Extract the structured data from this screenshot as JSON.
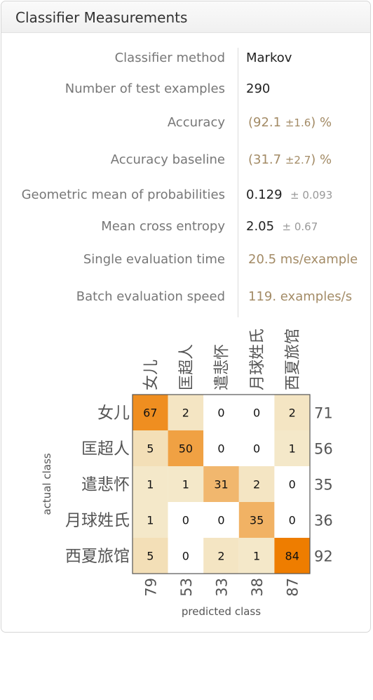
{
  "title": "Classifier Measurements",
  "metrics": [
    {
      "label": "Classifier method",
      "value": "Markov"
    },
    {
      "label": "Number of test examples",
      "value": "290"
    },
    {
      "label": "Accuracy",
      "open": "(",
      "main": "92.1",
      "pm": "±1.6",
      "close": ")",
      "unit": "%"
    },
    {
      "label": "Accuracy baseline",
      "open": "(",
      "main": "31.7",
      "pm": "±2.7",
      "close": ")",
      "unit": "%"
    },
    {
      "label": "Geometric mean of probabilities",
      "main": "0.129",
      "pm": "± 0.093"
    },
    {
      "label": "Mean cross entropy",
      "main": "2.05",
      "pm": "± 0.67"
    },
    {
      "label": "Single evaluation time",
      "value": "20.5 ms/example"
    },
    {
      "label": "Batch evaluation speed",
      "value": "119. examples/s"
    }
  ],
  "chart_data": {
    "type": "heatmap",
    "xlabel": "predicted class",
    "ylabel": "actual class",
    "classes": [
      "女儿",
      "匡超人",
      "遣悲怀",
      "月球姓氏",
      "西夏旅馆"
    ],
    "matrix": [
      [
        67,
        2,
        0,
        0,
        2
      ],
      [
        5,
        50,
        0,
        0,
        1
      ],
      [
        1,
        1,
        31,
        2,
        0
      ],
      [
        1,
        0,
        0,
        35,
        0
      ],
      [
        5,
        0,
        2,
        1,
        84
      ]
    ],
    "row_totals": [
      71,
      56,
      35,
      36,
      92
    ],
    "column_totals": [
      79,
      53,
      33,
      38,
      87
    ],
    "colors": {
      "high": "#ee7d00",
      "low": "#f4ecd0",
      "zero": "#ffffff",
      "grid": "#555555"
    }
  }
}
